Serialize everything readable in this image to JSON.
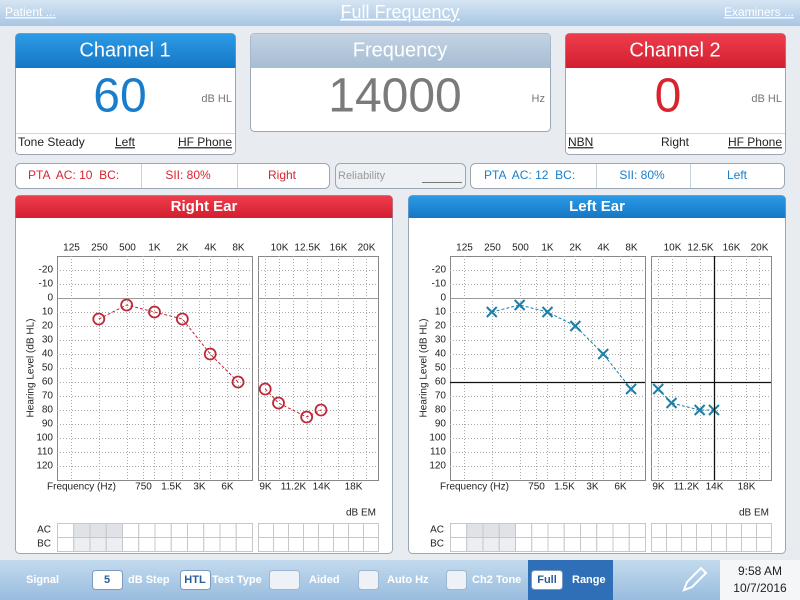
{
  "header": {
    "patient": "Patient ...",
    "title": "Full Frequency",
    "examiners": "Examiners ..."
  },
  "channel1": {
    "title": "Channel 1",
    "value": 60,
    "unit": "dB HL",
    "tone": "Tone Steady",
    "ear": "Left",
    "transducer": "HF Phone"
  },
  "frequency": {
    "title": "Frequency",
    "value": 14000,
    "unit": "Hz"
  },
  "channel2": {
    "title": "Channel 2",
    "value": 0,
    "unit": "dB HL",
    "tone": "NBN",
    "ear": "Right",
    "transducer": "HF Phone"
  },
  "status_right": {
    "pta": "PTA  AC: 10  BC:",
    "sii": "SII: 80%",
    "ear": "Right"
  },
  "reliability": "Reliability",
  "status_left": {
    "pta": "PTA  AC: 12  BC:",
    "sii": "SII: 80%",
    "ear": "Left"
  },
  "chart_data": [
    {
      "type": "audiogram",
      "title": "Right Ear",
      "color": "#c0283a",
      "marker": "circle",
      "cursor": false,
      "ylabel": "Hearing Level (dB HL)",
      "xlabel": "Frequency (Hz)",
      "units_label": "dB EM",
      "masking_labels": [
        "AC",
        "BC"
      ],
      "ylim": [
        -30,
        130
      ],
      "y_inverted": true,
      "yticks": [
        -20,
        -10,
        0,
        10,
        20,
        30,
        40,
        50,
        60,
        70,
        80,
        90,
        100,
        110,
        120
      ],
      "panels": [
        {
          "log_scale": true,
          "xlim": [
            88.4,
            11314
          ],
          "xticks": [
            125,
            250,
            500,
            {
              "value": 1000,
              "label": "1K"
            },
            {
              "value": 2000,
              "label": "2K"
            },
            {
              "value": 4000,
              "label": "4K"
            },
            {
              "value": 8000,
              "label": "8K"
            }
          ],
          "xticks_bottom": [
            750,
            {
              "value": 1500,
              "label": "1.5K"
            },
            {
              "value": 3000,
              "label": "3K"
            },
            {
              "value": 6000,
              "label": "6K"
            }
          ],
          "x": [
            250,
            500,
            1000,
            2000,
            4000,
            8000
          ],
          "values": [
            15,
            5,
            10,
            15,
            40,
            60
          ]
        },
        {
          "log_scale": true,
          "xlim": [
            8500,
            22000
          ],
          "xticks": [
            {
              "value": 10000,
              "label": "10K"
            },
            {
              "value": 12500,
              "label": "12.5K"
            },
            {
              "value": 16000,
              "label": "16K"
            },
            {
              "value": 20000,
              "label": "20K"
            }
          ],
          "xticks_bottom": [
            {
              "value": 9000,
              "label": "9K"
            },
            {
              "value": 11200,
              "label": "11.2K"
            },
            {
              "value": 14000,
              "label": "14K"
            },
            {
              "value": 18000,
              "label": "18K"
            }
          ],
          "x": [
            9000,
            10000,
            12500,
            14000
          ],
          "values": [
            65,
            75,
            85,
            80
          ]
        }
      ]
    },
    {
      "type": "audiogram",
      "title": "Left Ear",
      "color": "#1b7fa8",
      "marker": "cross",
      "cursor": true,
      "ylabel": "Hearing Level (dB HL)",
      "xlabel": "Frequency (Hz)",
      "units_label": "dB EM",
      "masking_labels": [
        "AC",
        "BC"
      ],
      "ylim": [
        -30,
        130
      ],
      "y_inverted": true,
      "yticks": [
        -20,
        -10,
        0,
        10,
        20,
        30,
        40,
        50,
        60,
        70,
        80,
        90,
        100,
        110,
        120
      ],
      "panels": [
        {
          "log_scale": true,
          "xlim": [
            88.4,
            11314
          ],
          "xticks": [
            125,
            250,
            500,
            {
              "value": 1000,
              "label": "1K"
            },
            {
              "value": 2000,
              "label": "2K"
            },
            {
              "value": 4000,
              "label": "4K"
            },
            {
              "value": 8000,
              "label": "8K"
            }
          ],
          "xticks_bottom": [
            750,
            {
              "value": 1500,
              "label": "1.5K"
            },
            {
              "value": 3000,
              "label": "3K"
            },
            {
              "value": 6000,
              "label": "6K"
            }
          ],
          "x": [
            250,
            500,
            1000,
            2000,
            4000,
            8000
          ],
          "values": [
            10,
            5,
            10,
            20,
            40,
            65
          ]
        },
        {
          "log_scale": true,
          "xlim": [
            8500,
            22000
          ],
          "xticks": [
            {
              "value": 10000,
              "label": "10K"
            },
            {
              "value": 12500,
              "label": "12.5K"
            },
            {
              "value": 16000,
              "label": "16K"
            },
            {
              "value": 20000,
              "label": "20K"
            }
          ],
          "xticks_bottom": [
            {
              "value": 9000,
              "label": "9K"
            },
            {
              "value": 11200,
              "label": "11.2K"
            },
            {
              "value": 14000,
              "label": "14K"
            },
            {
              "value": 18000,
              "label": "18K"
            }
          ],
          "x": [
            9000,
            10000,
            12500,
            14000
          ],
          "values": [
            65,
            75,
            80,
            80
          ]
        }
      ]
    }
  ],
  "toolbar": {
    "signal": "Signal",
    "db_step_value": 5,
    "db_step": "dB Step",
    "test_type_value": "HTL",
    "test_type": "Test Type",
    "aided": "Aided",
    "auto_hz": "Auto Hz",
    "ch2_tone": "Ch2 Tone",
    "range_value": "Full",
    "range": "Range"
  },
  "clock": {
    "time": "9:58 AM",
    "date": "10/7/2016"
  }
}
